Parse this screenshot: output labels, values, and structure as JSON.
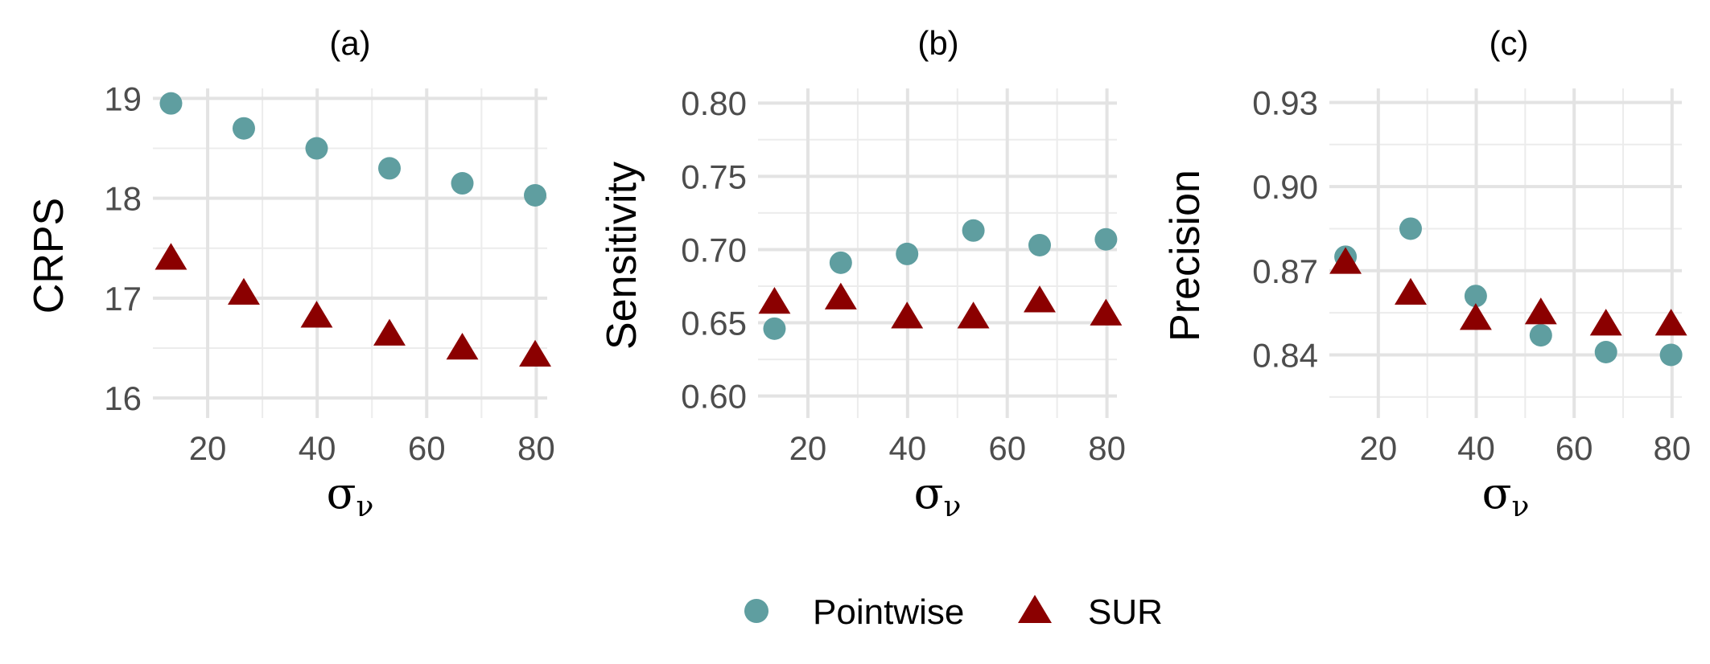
{
  "legend": {
    "items": [
      {
        "name": "Pointwise",
        "color": "#5f9ea0",
        "shape": "circle"
      },
      {
        "name": "SUR",
        "color": "#8b0000",
        "shape": "triangle"
      }
    ]
  },
  "chart_data": [
    {
      "type": "scatter",
      "title": "(a)",
      "ylabel": "CRPS",
      "xlabel_symbol": "σ",
      "xlabel_subscript": "ν",
      "x": [
        13.3,
        26.6,
        39.9,
        53.2,
        66.5,
        79.8
      ],
      "series": [
        {
          "name": "Pointwise",
          "values": [
            18.95,
            18.7,
            18.5,
            18.3,
            18.15,
            18.03
          ]
        },
        {
          "name": "SUR",
          "values": [
            17.4,
            17.05,
            16.82,
            16.64,
            16.5,
            16.43
          ]
        }
      ],
      "xlim": [
        10,
        82
      ],
      "ylim": [
        15.8,
        19.1
      ],
      "xticks": [
        20,
        40,
        60,
        80
      ],
      "yticks": [
        16,
        17,
        18,
        19
      ],
      "xtick_labels": [
        "20",
        "40",
        "60",
        "80"
      ],
      "ytick_labels": [
        "16",
        "17",
        "18",
        "19"
      ]
    },
    {
      "type": "scatter",
      "title": "(b)",
      "ylabel": "Sensitivity",
      "xlabel_symbol": "σ",
      "xlabel_subscript": "ν",
      "x": [
        13.3,
        26.6,
        39.9,
        53.2,
        66.5,
        79.8
      ],
      "series": [
        {
          "name": "Pointwise",
          "values": [
            0.646,
            0.691,
            0.697,
            0.713,
            0.703,
            0.707
          ]
        },
        {
          "name": "SUR",
          "values": [
            0.664,
            0.667,
            0.654,
            0.654,
            0.665,
            0.656
          ]
        }
      ],
      "xlim": [
        10,
        82
      ],
      "ylim": [
        0.585,
        0.81
      ],
      "xticks": [
        20,
        40,
        60,
        80
      ],
      "yticks": [
        0.6,
        0.65,
        0.7,
        0.75,
        0.8
      ],
      "xtick_labels": [
        "20",
        "40",
        "60",
        "80"
      ],
      "ytick_labels": [
        "0.60",
        "0.65",
        "0.70",
        "0.75",
        "0.80"
      ]
    },
    {
      "type": "scatter",
      "title": "(c)",
      "ylabel": "Precision",
      "xlabel_symbol": "σ",
      "xlabel_subscript": "ν",
      "x": [
        13.3,
        26.6,
        39.9,
        53.2,
        66.5,
        79.8
      ],
      "series": [
        {
          "name": "Pointwise",
          "values": [
            0.875,
            0.885,
            0.861,
            0.847,
            0.841,
            0.84
          ]
        },
        {
          "name": "SUR",
          "values": [
            0.873,
            0.862,
            0.853,
            0.855,
            0.851,
            0.851
          ]
        }
      ],
      "xlim": [
        10,
        82
      ],
      "ylim": [
        0.8175,
        0.935
      ],
      "xticks": [
        20,
        40,
        60,
        80
      ],
      "yticks": [
        0.84,
        0.87,
        0.9,
        0.93
      ],
      "xtick_labels": [
        "20",
        "40",
        "60",
        "80"
      ],
      "ytick_labels": [
        "0.84",
        "0.87",
        "0.90",
        "0.93"
      ]
    }
  ]
}
